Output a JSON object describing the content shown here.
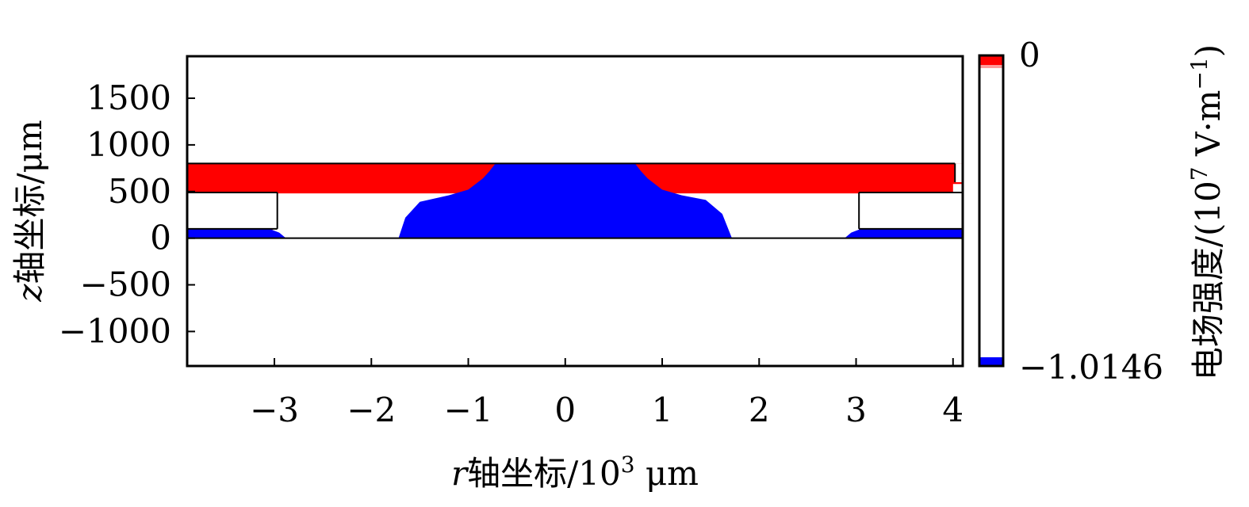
{
  "chart_data": {
    "type": "heatmap",
    "xlabel": {
      "var": "r",
      "main": "轴坐标/10",
      "sup": "3",
      "unit": " μm"
    },
    "ylabel": {
      "var": "z",
      "main": "轴坐标/μm"
    },
    "xlim": [
      -3.9,
      4.1
    ],
    "ylim": [
      -1370,
      1950
    ],
    "xticks": [
      {
        "value": -3,
        "label": "−3"
      },
      {
        "value": -2,
        "label": "−2"
      },
      {
        "value": -1,
        "label": "−1"
      },
      {
        "value": 0,
        "label": "0"
      },
      {
        "value": 1,
        "label": "1"
      },
      {
        "value": 2,
        "label": "2"
      },
      {
        "value": 3,
        "label": "3"
      },
      {
        "value": 4,
        "label": "4"
      }
    ],
    "yticks": [
      {
        "value": 1500,
        "label": "1500"
      },
      {
        "value": 1000,
        "label": "1000"
      },
      {
        "value": 500,
        "label": "500"
      },
      {
        "value": 0,
        "label": "0"
      },
      {
        "value": -500,
        "label": "−500"
      },
      {
        "value": -1000,
        "label": "−1000"
      }
    ],
    "colorbar": {
      "title": "电场强度/(10",
      "title_sup": "7",
      "title_tail": " V·m",
      "title_sup2": "−1",
      "title_close": ")",
      "max_label": "0",
      "min_label": "−1.0146",
      "max_value": 0,
      "min_value": -1.0146,
      "colors": {
        "top": "#ff0000",
        "mid": "#ffffff",
        "bottom": "#0000ff"
      }
    },
    "regions": [
      {
        "name": "red-region",
        "color": "#ff0000",
        "points": [
          [
            -3.9,
            800
          ],
          [
            4.1,
            800
          ],
          [
            4.1,
            580
          ],
          [
            4.0,
            580
          ],
          [
            4.0,
            0
          ],
          [
            3.03,
            0
          ],
          [
            3.03,
            480
          ],
          [
            -3.02,
            480
          ],
          [
            -3.02,
            0
          ],
          [
            -3.9,
            0
          ]
        ]
      },
      {
        "name": "blue-center",
        "color": "#0000ff",
        "points": [
          [
            -0.72,
            800
          ],
          [
            0.72,
            800
          ],
          [
            0.78,
            720
          ],
          [
            0.85,
            640
          ],
          [
            1.0,
            520
          ],
          [
            1.2,
            460
          ],
          [
            1.45,
            410
          ],
          [
            1.62,
            260
          ],
          [
            1.72,
            0
          ],
          [
            -1.72,
            0
          ],
          [
            -1.65,
            220
          ],
          [
            -1.5,
            390
          ],
          [
            -1.2,
            460
          ],
          [
            -1.0,
            520
          ],
          [
            -0.85,
            640
          ],
          [
            -0.78,
            720
          ]
        ]
      },
      {
        "name": "white-left-cavity",
        "color": "#ffffff",
        "points": [
          [
            -3.9,
            490
          ],
          [
            -2.97,
            490
          ],
          [
            -2.97,
            100
          ],
          [
            -3.9,
            100
          ]
        ]
      },
      {
        "name": "white-right-cavity",
        "color": "#ffffff",
        "points": [
          [
            3.03,
            490
          ],
          [
            4.1,
            490
          ],
          [
            4.1,
            100
          ],
          [
            3.03,
            100
          ]
        ]
      },
      {
        "name": "blue-left-strip",
        "color": "#0000ff",
        "points": [
          [
            -3.9,
            100
          ],
          [
            -3.05,
            100
          ],
          [
            -2.95,
            60
          ],
          [
            -2.88,
            0
          ],
          [
            -3.9,
            0
          ]
        ]
      },
      {
        "name": "blue-right-strip",
        "color": "#0000ff",
        "points": [
          [
            2.88,
            0
          ],
          [
            2.95,
            60
          ],
          [
            3.05,
            100
          ],
          [
            4.1,
            100
          ],
          [
            4.1,
            0
          ]
        ]
      },
      {
        "name": "white-top-right-notch",
        "color": "#ffffff",
        "points": [
          [
            4.02,
            800
          ],
          [
            4.1,
            800
          ],
          [
            4.1,
            600
          ],
          [
            4.02,
            600
          ]
        ]
      }
    ]
  }
}
